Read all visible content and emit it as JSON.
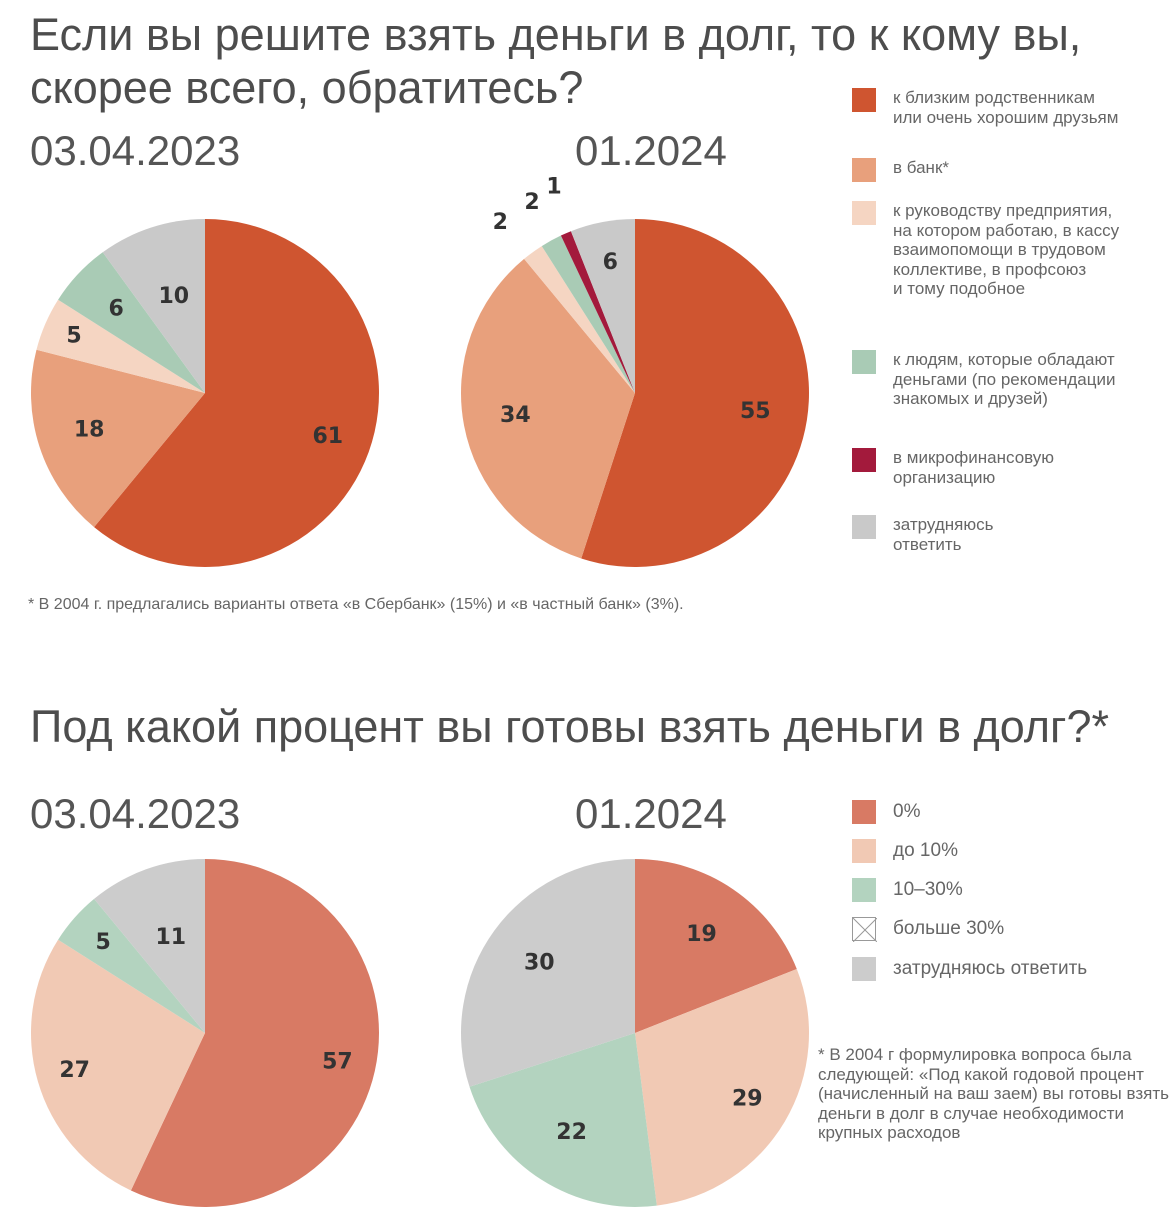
{
  "section1": {
    "title": "Если вы решите взять деньги в долг, то к кому вы, скорее всего, обратитесь?",
    "note": "* В 2004 г. предлагались варианты ответа «в Сбербанк» (15%) и «в частный банк» (3%)."
  },
  "section2": {
    "title": "Под какой процент вы готовы взять деньги в долг?*",
    "note": "* В 2004 г формулировка вопроса была следующей: «Под какой годовой процент (начисленный на ваш заем) вы готовы взять деньги в долг в случае необходимости крупных расходов"
  },
  "chart_data": [
    {
      "type": "pie",
      "group": "Если вы решите взять деньги в долг, то к кому вы, скорее всего, обратитесь?",
      "title": "03.04.2023",
      "start": "12 o'clock, clockwise",
      "slices": [
        {
          "label": "к близким родственникам или очень хорошим друзьям",
          "value": 61,
          "color": "#cf5530"
        },
        {
          "label": "в банк*",
          "value": 18,
          "color": "#e8a07c"
        },
        {
          "label": "к руководству предприятия, на котором работаю, в кассу взаимопомощи в трудовом коллективе, в профсоюз и тому подобное",
          "value": 5,
          "color": "#f5d5c2"
        },
        {
          "label": "к людям, которые обладают деньгами (по рекомендации знакомых и друзей)",
          "value": 6,
          "color": "#a9cbb5"
        },
        {
          "label": "затрудняюсь ответить",
          "value": 10,
          "color": "#c9c9c9"
        }
      ]
    },
    {
      "type": "pie",
      "group": "Если вы решите взять деньги в долг, то к кому вы, скорее всего, обратитесь?",
      "title": "01.2024",
      "start": "12 o'clock, clockwise",
      "slices": [
        {
          "label": "к близким родственникам или очень хорошим друзьям",
          "value": 55,
          "color": "#cf5530"
        },
        {
          "label": "в банк*",
          "value": 34,
          "color": "#e8a07c"
        },
        {
          "label": "к руководству предприятия, на котором работаю, в кассу взаимопомощи в трудовом коллективе, в профсоюз и тому подобное",
          "value": 2,
          "color": "#f5d5c2"
        },
        {
          "label": "к людям, которые обладают деньгами (по рекомендации знакомых и друзей)",
          "value": 2,
          "color": "#a9cbb5"
        },
        {
          "label": "в микрофинансовую организацию",
          "value": 1,
          "color": "#a31a3c"
        },
        {
          "label": "затрудняюсь ответить",
          "value": 6,
          "color": "#c9c9c9"
        }
      ]
    },
    {
      "type": "pie",
      "group": "Под какой процент вы готовы взять деньги в долг?*",
      "title": "03.04.2023",
      "start": "12 o'clock, clockwise",
      "slices": [
        {
          "label": "0%",
          "value": 57,
          "color": "#d87a64"
        },
        {
          "label": "до 10%",
          "value": 27,
          "color": "#f1c9b4"
        },
        {
          "label": "10–30%",
          "value": 5,
          "color": "#b3d3bf"
        },
        {
          "label": "затрудняюсь ответить",
          "value": 11,
          "color": "#cccccc"
        }
      ]
    },
    {
      "type": "pie",
      "group": "Под какой процент вы готовы взять деньги в долг?*",
      "title": "01.2024",
      "start": "12 o'clock, clockwise",
      "slices": [
        {
          "label": "0%",
          "value": 19,
          "color": "#d87a64"
        },
        {
          "label": "до 10%",
          "value": 29,
          "color": "#f1c9b4"
        },
        {
          "label": "10–30%",
          "value": 22,
          "color": "#b3d3bf"
        },
        {
          "label": "затрудняюсь ответить",
          "value": 30,
          "color": "#cccccc"
        }
      ]
    }
  ],
  "legend1": [
    {
      "label": "к близким родственникам\nили очень хорошим друзьям",
      "color": "#cf5530"
    },
    {
      "label": "в банк*",
      "color": "#e8a07c"
    },
    {
      "label": "к руководству предприятия,\nна котором работаю, в кассу\nвзаимопомощи в трудовом\nколлективе, в профсоюз\nи тому подобное",
      "color": "#f5d5c2"
    },
    {
      "label": "к людям, которые обладают\nденьгами (по рекомендации\nзнакомых и друзей)",
      "color": "#a9cbb5"
    },
    {
      "label": "в микрофинансовую\nорганизацию",
      "color": "#a31a3c"
    },
    {
      "label": "затрудняюсь\nответить",
      "color": "#c9c9c9"
    }
  ],
  "legend2": [
    {
      "label": "0%",
      "color": "#d87a64"
    },
    {
      "label": "до 10%",
      "color": "#f1c9b4"
    },
    {
      "label": "10–30%",
      "color": "#b3d3bf"
    },
    {
      "label": "больше 30%",
      "color": "#ffffff"
    },
    {
      "label": "затрудняюсь ответить",
      "color": "#cccccc"
    }
  ]
}
